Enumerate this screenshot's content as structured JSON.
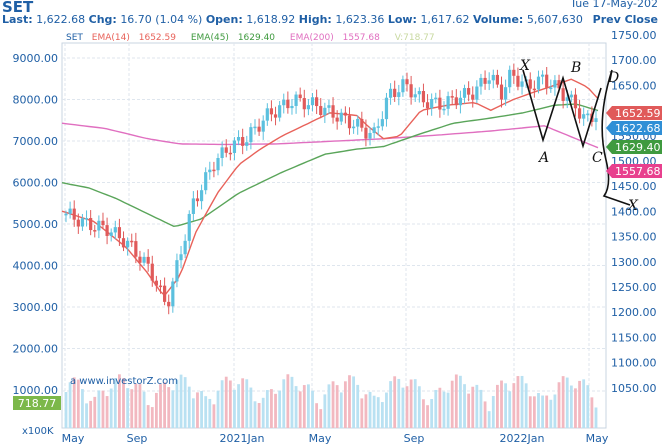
{
  "header": {
    "symbol": "SET",
    "date": "Tue 17-May-202",
    "last_label": "Last:",
    "last": "1,622.68",
    "chg_label": "Chg:",
    "chg": "16.70 (1.04 %)",
    "open_label": "Open:",
    "open": "1,618.92",
    "high_label": "High:",
    "high": "1,623.36",
    "low_label": "Low:",
    "low": "1,617.62",
    "volume_label": "Volume:",
    "volume": "5,607,630",
    "prev_close": "Prev Close"
  },
  "legend": {
    "symbol": "SET",
    "ema14_label": "EMA(14)",
    "ema14_value": "1652.59",
    "ema45_label": "EMA(45)",
    "ema45_value": "1629.40",
    "ema200_label": "EMA(200)",
    "ema200_value": "1557.68",
    "vol_label": "V:718.77"
  },
  "watermark": "a www.investorZ.com",
  "volume_badge": "718.77",
  "volume_unit": "x100K",
  "colors": {
    "up": "#5bc0de",
    "down": "#e05a5a",
    "ema14": "#e8625a",
    "ema45": "#5aa55a",
    "ema200": "#e06fc0",
    "text": "#1f5fa5",
    "last_badge": "#2f8fd6"
  },
  "chart_data": {
    "type": "candlestick",
    "title": "SET",
    "left_axis": {
      "ticks": [
        "9000.00",
        "8000.00",
        "7000.00",
        "6000.00",
        "5000.00",
        "4000.00",
        "3000.00",
        "2000.00"
      ]
    },
    "right_axis": {
      "ticks": [
        "1750.00",
        "1700.00",
        "1650.00",
        "1600.00",
        "1550.00",
        "1500.00",
        "1450.00",
        "1400.00",
        "1350.00",
        "1300.00",
        "1250.00",
        "1200.00",
        "1150.00",
        "1100.00",
        "1050.00"
      ],
      "price_range": [
        1190,
        1760
      ]
    },
    "volume_axis": {
      "ticks": [
        "1000.00"
      ]
    },
    "x_labels": [
      "May",
      "Sep",
      "2021Jan",
      "May",
      "Sep",
      "2022Jan",
      "May"
    ],
    "markers": [
      {
        "label": "1652.59",
        "value": 1652.59,
        "series": "EMA(14)"
      },
      {
        "label": "1622.68",
        "value": 1622.68,
        "series": "Last"
      },
      {
        "label": "1629.40",
        "value": 1629.4,
        "series": "EMA(45)"
      },
      {
        "label": "1557.68",
        "value": 1557.68,
        "series": "EMA(200)"
      }
    ],
    "annotations": [
      "X",
      "A",
      "B",
      "C",
      "D",
      "X"
    ],
    "series": [
      {
        "name": "EMA(14)",
        "anchors": [
          [
            0,
            1435
          ],
          [
            0.06,
            1415
          ],
          [
            0.12,
            1365
          ],
          [
            0.16,
            1315
          ],
          [
            0.19,
            1270
          ],
          [
            0.22,
            1310
          ],
          [
            0.25,
            1395
          ],
          [
            0.29,
            1470
          ],
          [
            0.33,
            1525
          ],
          [
            0.37,
            1555
          ],
          [
            0.41,
            1580
          ],
          [
            0.45,
            1600
          ],
          [
            0.5,
            1625
          ],
          [
            0.55,
            1620
          ],
          [
            0.57,
            1600
          ],
          [
            0.6,
            1575
          ],
          [
            0.63,
            1580
          ],
          [
            0.67,
            1630
          ],
          [
            0.72,
            1640
          ],
          [
            0.77,
            1645
          ],
          [
            0.8,
            1630
          ],
          [
            0.84,
            1650
          ],
          [
            0.88,
            1665
          ],
          [
            0.91,
            1675
          ],
          [
            0.95,
            1690
          ],
          [
            0.98,
            1675
          ],
          [
            1,
            1652.59
          ]
        ]
      },
      {
        "name": "EMA(45)",
        "anchors": [
          [
            0,
            1490
          ],
          [
            0.05,
            1480
          ],
          [
            0.1,
            1460
          ],
          [
            0.15,
            1435
          ],
          [
            0.21,
            1405
          ],
          [
            0.26,
            1420
          ],
          [
            0.33,
            1470
          ],
          [
            0.41,
            1510
          ],
          [
            0.49,
            1545
          ],
          [
            0.55,
            1555
          ],
          [
            0.6,
            1560
          ],
          [
            0.67,
            1585
          ],
          [
            0.73,
            1605
          ],
          [
            0.8,
            1615
          ],
          [
            0.86,
            1625
          ],
          [
            0.92,
            1640
          ],
          [
            0.96,
            1642
          ],
          [
            1,
            1629.4
          ]
        ]
      },
      {
        "name": "EMA(200)",
        "anchors": [
          [
            0,
            1605
          ],
          [
            0.08,
            1595
          ],
          [
            0.16,
            1575
          ],
          [
            0.22,
            1565
          ],
          [
            0.3,
            1564
          ],
          [
            0.4,
            1565
          ],
          [
            0.5,
            1570
          ],
          [
            0.6,
            1575
          ],
          [
            0.7,
            1582
          ],
          [
            0.8,
            1590
          ],
          [
            0.9,
            1600
          ],
          [
            1,
            1557.68
          ]
        ]
      },
      {
        "name": "Price",
        "anchors": [
          [
            0,
            1430
          ],
          [
            0.04,
            1410
          ],
          [
            0.08,
            1400
          ],
          [
            0.12,
            1370
          ],
          [
            0.16,
            1320
          ],
          [
            0.19,
            1250
          ],
          [
            0.21,
            1330
          ],
          [
            0.24,
            1450
          ],
          [
            0.28,
            1530
          ],
          [
            0.31,
            1560
          ],
          [
            0.34,
            1575
          ],
          [
            0.38,
            1620
          ],
          [
            0.43,
            1650
          ],
          [
            0.47,
            1640
          ],
          [
            0.52,
            1615
          ],
          [
            0.55,
            1600
          ],
          [
            0.58,
            1580
          ],
          [
            0.61,
            1660
          ],
          [
            0.64,
            1680
          ],
          [
            0.67,
            1650
          ],
          [
            0.71,
            1640
          ],
          [
            0.74,
            1655
          ],
          [
            0.77,
            1665
          ],
          [
            0.8,
            1700
          ],
          [
            0.82,
            1660
          ],
          [
            0.84,
            1700
          ],
          [
            0.87,
            1675
          ],
          [
            0.9,
            1690
          ],
          [
            0.93,
            1670
          ],
          [
            0.96,
            1640
          ],
          [
            0.98,
            1610
          ],
          [
            1,
            1622.68
          ]
        ]
      }
    ]
  }
}
